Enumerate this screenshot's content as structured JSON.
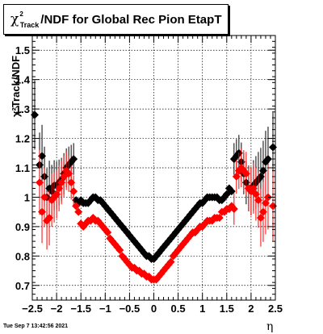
{
  "title": {
    "chi_symbol": "χ",
    "superscript": "2",
    "subscript": "Track",
    "rest": "/NDF for Global Rec Pion EtapT"
  },
  "axes": {
    "ylabel": "χ²Track/NDF",
    "xlabel": "η"
  },
  "datestamp": "Tue Sep  7 13:42:56 2021",
  "colors": {
    "series_black": "#000000",
    "series_red": "#ff0000",
    "frame": "#000000",
    "grid": "#000000"
  },
  "chart_data": {
    "type": "scatter",
    "xlim": [
      -2.5,
      2.5
    ],
    "ylim": [
      0.65,
      1.55
    ],
    "x_ticks": [
      -2.5,
      -2,
      -1.5,
      -1,
      -0.5,
      0,
      0.5,
      1,
      1.5,
      2,
      2.5
    ],
    "x_tick_labels": [
      "−2.5",
      "−2",
      "−1.5",
      "−1",
      "−0.5",
      "0",
      "0.5",
      "1",
      "1.5",
      "2",
      "2.5"
    ],
    "y_ticks": [
      0.7,
      0.8,
      0.9,
      1.0,
      1.1,
      1.2,
      1.3,
      1.4,
      1.5
    ],
    "y_tick_labels": [
      "0.7",
      "0.8",
      "0.9",
      "1",
      "1.1",
      "1.2",
      "1.3",
      "1.4",
      "1.5"
    ],
    "grid": true,
    "series": [
      {
        "color": "#000000",
        "x": [
          -2.45,
          -2.35,
          -2.3,
          -2.25,
          -2.2,
          -2.15,
          -2.1,
          -2.05,
          -2.0,
          -1.95,
          -1.9,
          -1.85,
          -1.8,
          -1.75,
          -1.7,
          -1.65,
          -1.6,
          -1.55,
          -1.5,
          -1.45,
          -1.4,
          -1.35,
          -1.3,
          -1.25,
          -1.2,
          -1.15,
          -1.1,
          -1.05,
          -1.0,
          -0.95,
          -0.9,
          -0.85,
          -0.8,
          -0.75,
          -0.7,
          -0.65,
          -0.6,
          -0.55,
          -0.5,
          -0.45,
          -0.4,
          -0.35,
          -0.3,
          -0.25,
          -0.2,
          -0.15,
          -0.1,
          -0.05,
          0.0,
          0.05,
          0.1,
          0.15,
          0.2,
          0.25,
          0.3,
          0.35,
          0.4,
          0.45,
          0.5,
          0.55,
          0.6,
          0.65,
          0.7,
          0.75,
          0.8,
          0.85,
          0.9,
          0.95,
          1.0,
          1.05,
          1.1,
          1.15,
          1.2,
          1.25,
          1.3,
          1.35,
          1.4,
          1.45,
          1.5,
          1.55,
          1.6,
          1.65,
          1.7,
          1.75,
          1.8,
          1.85,
          1.9,
          1.95,
          2.0,
          2.05,
          2.1,
          2.15,
          2.2,
          2.25,
          2.3,
          2.35,
          2.45
        ],
        "y": [
          1.28,
          1.11,
          1.14,
          1.07,
          1.0,
          1.03,
          1.02,
          1.04,
          1.04,
          1.05,
          1.06,
          1.08,
          1.1,
          1.11,
          1.12,
          1.13,
          0.99,
          0.98,
          0.99,
          0.98,
          0.98,
          0.98,
          0.99,
          1.0,
          1.0,
          0.99,
          0.99,
          0.98,
          0.97,
          0.96,
          0.95,
          0.94,
          0.93,
          0.92,
          0.91,
          0.9,
          0.89,
          0.88,
          0.87,
          0.86,
          0.85,
          0.84,
          0.83,
          0.82,
          0.81,
          0.8,
          0.8,
          0.79,
          0.79,
          0.8,
          0.81,
          0.82,
          0.83,
          0.84,
          0.85,
          0.86,
          0.87,
          0.88,
          0.89,
          0.9,
          0.91,
          0.92,
          0.93,
          0.94,
          0.95,
          0.96,
          0.97,
          0.98,
          0.98,
          0.99,
          1.0,
          1.0,
          1.0,
          1.0,
          1.0,
          0.99,
          0.99,
          1.0,
          1.01,
          1.03,
          1.02,
          1.13,
          1.14,
          1.15,
          1.12,
          1.08,
          1.05,
          1.03,
          1.02,
          1.04,
          1.05,
          1.06,
          1.07,
          1.09,
          1.12,
          1.13,
          1.17
        ]
      },
      {
        "color": "#ff0000",
        "x": [
          -2.35,
          -2.3,
          -2.25,
          -2.2,
          -2.15,
          -2.1,
          -2.05,
          -2.0,
          -1.95,
          -1.9,
          -1.85,
          -1.8,
          -1.75,
          -1.7,
          -1.65,
          -1.6,
          -1.55,
          -1.5,
          -1.45,
          -1.4,
          -1.35,
          -1.3,
          -1.25,
          -1.2,
          -1.15,
          -1.1,
          -1.05,
          -1.0,
          -0.95,
          -0.9,
          -0.85,
          -0.8,
          -0.75,
          -0.7,
          -0.65,
          -0.6,
          -0.55,
          -0.5,
          -0.45,
          -0.4,
          -0.35,
          -0.3,
          -0.25,
          -0.2,
          -0.15,
          -0.1,
          -0.05,
          0.0,
          0.05,
          0.1,
          0.15,
          0.2,
          0.25,
          0.3,
          0.35,
          0.4,
          0.45,
          0.5,
          0.55,
          0.6,
          0.65,
          0.7,
          0.75,
          0.8,
          0.85,
          0.9,
          0.95,
          1.0,
          1.05,
          1.1,
          1.15,
          1.2,
          1.25,
          1.3,
          1.35,
          1.4,
          1.45,
          1.5,
          1.55,
          1.6,
          1.65,
          1.7,
          1.75,
          1.8,
          1.85,
          1.9,
          1.95,
          2.0,
          2.05,
          2.1,
          2.15,
          2.2,
          2.25,
          2.3,
          2.35,
          2.45
        ],
        "y": [
          1.05,
          0.95,
          1.0,
          0.92,
          0.93,
          0.99,
          1.0,
          1.01,
          1.03,
          1.05,
          1.07,
          1.09,
          1.08,
          1.05,
          1.02,
          0.97,
          0.95,
          0.91,
          0.9,
          0.91,
          0.92,
          0.92,
          0.93,
          0.92,
          0.92,
          0.91,
          0.9,
          0.89,
          0.88,
          0.86,
          0.85,
          0.84,
          0.83,
          0.82,
          0.8,
          0.79,
          0.78,
          0.77,
          0.76,
          0.76,
          0.75,
          0.75,
          0.74,
          0.74,
          0.73,
          0.73,
          0.72,
          0.72,
          0.72,
          0.73,
          0.74,
          0.75,
          0.76,
          0.77,
          0.78,
          0.8,
          0.81,
          0.82,
          0.83,
          0.84,
          0.85,
          0.86,
          0.87,
          0.88,
          0.88,
          0.89,
          0.9,
          0.9,
          0.91,
          0.92,
          0.92,
          0.92,
          0.93,
          0.93,
          0.93,
          0.95,
          0.95,
          0.96,
          0.96,
          0.97,
          0.96,
          1.07,
          1.09,
          1.1,
          1.09,
          1.08,
          1.03,
          1.02,
          1.03,
          1.01,
          0.99,
          0.93,
          0.95,
          0.98,
          1.0,
          0.97
        ]
      }
    ]
  }
}
